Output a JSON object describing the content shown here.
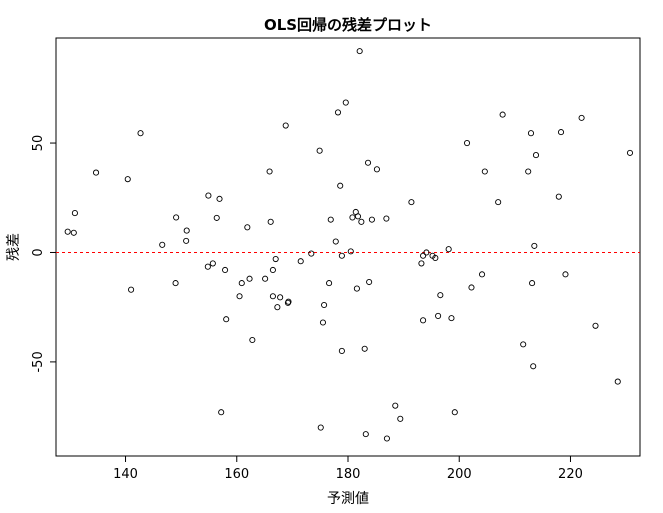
{
  "chart_data": {
    "type": "scatter",
    "title": "OLS回帰の残差プロット",
    "xlabel": "予測値",
    "ylabel": "残差",
    "xlim": [
      127.5,
      232.5
    ],
    "ylim": [
      -93,
      98
    ],
    "xticks": [
      140,
      160,
      180,
      200,
      220
    ],
    "yticks": [
      -50,
      0,
      50
    ],
    "x_tick_labels": [
      "140",
      "160",
      "180",
      "200",
      "220"
    ],
    "y_tick_labels": [
      "-50",
      "0",
      "50"
    ],
    "reference_line": {
      "y": 0,
      "style": "dashed",
      "color": "#ff0000"
    },
    "grid": false,
    "legend": "none",
    "points": [
      [
        129.6,
        9.5
      ],
      [
        130.7,
        9
      ],
      [
        130.9,
        18
      ],
      [
        134.7,
        36.5
      ],
      [
        140.4,
        33.5
      ],
      [
        141,
        -17
      ],
      [
        142.7,
        54.5
      ],
      [
        146.6,
        3.5
      ],
      [
        149,
        -14
      ],
      [
        149.1,
        16
      ],
      [
        150.9,
        5.3
      ],
      [
        151,
        10
      ],
      [
        154.9,
        26
      ],
      [
        154.8,
        -6.5
      ],
      [
        155.7,
        -5
      ],
      [
        156.4,
        15.8
      ],
      [
        156.9,
        24.5
      ],
      [
        157.2,
        -73
      ],
      [
        157.9,
        -8
      ],
      [
        158.1,
        -30.5
      ],
      [
        160.5,
        -20
      ],
      [
        160.9,
        -14
      ],
      [
        161.9,
        11.5
      ],
      [
        162.3,
        -12
      ],
      [
        162.8,
        -40
      ],
      [
        165.1,
        -12
      ],
      [
        165.9,
        37
      ],
      [
        166.1,
        14
      ],
      [
        166.5,
        -8
      ],
      [
        166.5,
        -20
      ],
      [
        167,
        -3
      ],
      [
        167.3,
        -25
      ],
      [
        167.8,
        -20.5
      ],
      [
        168.8,
        58
      ],
      [
        169.2,
        -23
      ],
      [
        169.3,
        -22.5
      ],
      [
        171.5,
        -4
      ],
      [
        173.4,
        -0.5
      ],
      [
        174.9,
        46.5
      ],
      [
        175.1,
        -80
      ],
      [
        175.5,
        -32
      ],
      [
        175.7,
        -24
      ],
      [
        176.6,
        -14
      ],
      [
        176.9,
        15
      ],
      [
        177.8,
        5
      ],
      [
        178.2,
        64
      ],
      [
        178.6,
        30.5
      ],
      [
        178.9,
        -1.5
      ],
      [
        178.9,
        -45
      ],
      [
        179.6,
        68.5
      ],
      [
        180.5,
        0.5
      ],
      [
        180.8,
        16
      ],
      [
        181.4,
        18.5
      ],
      [
        181.6,
        -16.5
      ],
      [
        181.8,
        16.5
      ],
      [
        182.1,
        92
      ],
      [
        182.4,
        14
      ],
      [
        183,
        -44
      ],
      [
        183.2,
        -83
      ],
      [
        183.6,
        41
      ],
      [
        183.8,
        -13.5
      ],
      [
        184.3,
        15
      ],
      [
        185.2,
        38
      ],
      [
        186.9,
        15.5
      ],
      [
        187,
        -85
      ],
      [
        188.5,
        -70
      ],
      [
        189.4,
        -76
      ],
      [
        191.4,
        23
      ],
      [
        193.2,
        -5
      ],
      [
        193.5,
        -1.5
      ],
      [
        193.5,
        -31
      ],
      [
        194.1,
        0
      ],
      [
        195.2,
        -1.5
      ],
      [
        195.7,
        -2.5
      ],
      [
        196.2,
        -29
      ],
      [
        196.6,
        -19.5
      ],
      [
        198.1,
        1.5
      ],
      [
        198.6,
        -30
      ],
      [
        199.2,
        -73
      ],
      [
        201.4,
        50
      ],
      [
        202.2,
        -16
      ],
      [
        204.1,
        -10
      ],
      [
        204.6,
        37
      ],
      [
        207,
        23
      ],
      [
        207.8,
        63
      ],
      [
        211.5,
        -42
      ],
      [
        212.4,
        37
      ],
      [
        212.9,
        54.5
      ],
      [
        213.1,
        -14
      ],
      [
        213.3,
        -52
      ],
      [
        213.5,
        3
      ],
      [
        213.8,
        44.5
      ],
      [
        217.9,
        25.5
      ],
      [
        218.3,
        55
      ],
      [
        219.1,
        -10
      ],
      [
        222,
        61.5
      ],
      [
        224.5,
        -33.5
      ],
      [
        228.5,
        -59
      ],
      [
        230.7,
        45.5
      ]
    ]
  }
}
